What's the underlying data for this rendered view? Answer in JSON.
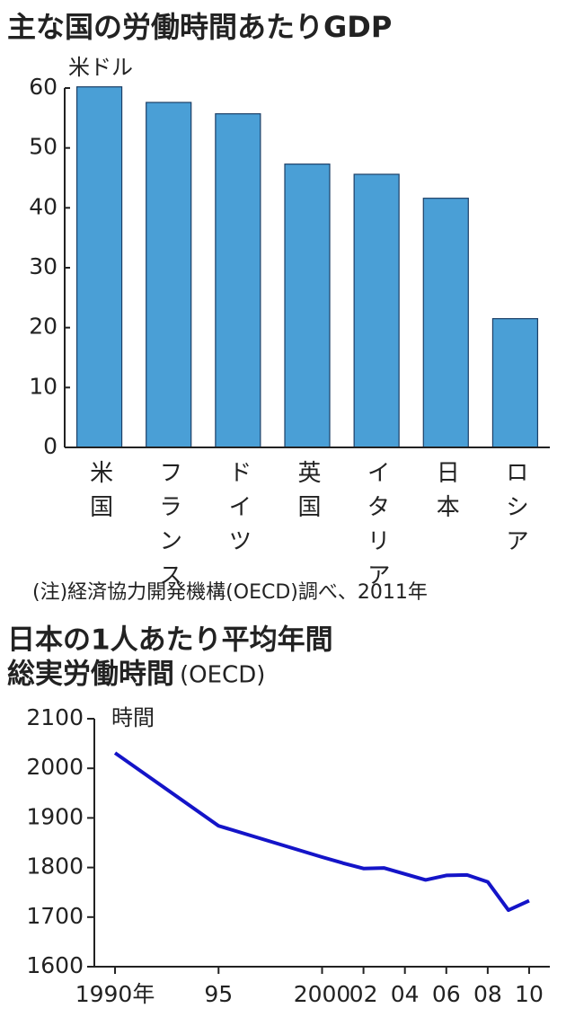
{
  "chart_data": [
    {
      "type": "bar",
      "title": "主な国の労働時間あたりGDP",
      "y_unit": "米ドル",
      "categories": [
        "米国",
        "フランス",
        "ドイツ",
        "英国",
        "イタリア",
        "日本",
        "ロシア"
      ],
      "values": [
        60.2,
        57.6,
        55.7,
        47.3,
        45.6,
        41.6,
        21.5
      ],
      "color": "#4a9fd6",
      "ylim": [
        0,
        60
      ],
      "yticks": [
        0,
        10,
        20,
        30,
        40,
        50,
        60
      ],
      "grid": false,
      "note": "(注)経済協力開発機構(OECD)調べ、2011年"
    },
    {
      "type": "line",
      "title": "日本の1人あたり平均年間",
      "title_line2": "総実労働時間",
      "title_suffix": "(OECD)",
      "y_unit": "時間",
      "x": [
        1990,
        1995,
        2000,
        2001,
        2002,
        2003,
        2004,
        2005,
        2006,
        2007,
        2008,
        2009,
        2010
      ],
      "values": [
        2031,
        1884,
        1821,
        1809,
        1798,
        1799,
        1787,
        1775,
        1784,
        1785,
        1771,
        1714,
        1733
      ],
      "color": "#1414c8",
      "xlim": [
        1989,
        2011
      ],
      "ylim": [
        1600,
        2100
      ],
      "xticks": [
        {
          "value": 1990,
          "label": "1990年"
        },
        {
          "value": 1995,
          "label": "95"
        },
        2000,
        {
          "value": 2002,
          "label": "02"
        },
        {
          "value": 2004,
          "label": "04"
        },
        {
          "value": 2006,
          "label": "06"
        },
        {
          "value": 2008,
          "label": "08"
        },
        {
          "value": 2010,
          "label": "10"
        }
      ],
      "yticks": [
        1600,
        1700,
        1800,
        1900,
        2000,
        2100
      ],
      "grid": false
    }
  ]
}
